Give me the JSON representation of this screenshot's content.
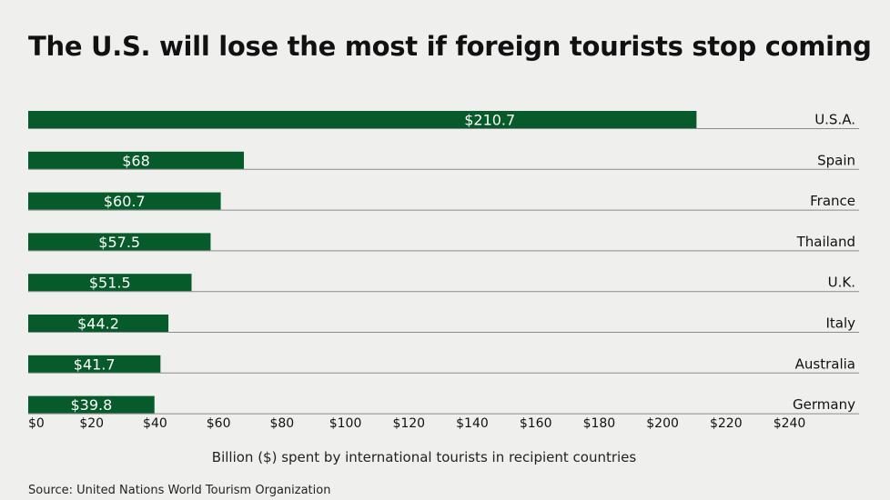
{
  "chart_data": {
    "type": "bar",
    "orientation": "horizontal",
    "title": "The U.S. will lose the most if foreign tourists stop coming",
    "xlabel": "Billion ($) spent by international tourists in recipient countries",
    "ylabel": "",
    "categories": [
      "U.S.A.",
      "Spain",
      "France",
      "Thailand",
      "U.K.",
      "Italy",
      "Australia",
      "Germany"
    ],
    "values": [
      210.7,
      68,
      60.7,
      57.5,
      51.5,
      44.2,
      41.7,
      39.8
    ],
    "data_labels": [
      "$210.7",
      "$68",
      "$60.7",
      "$57.5",
      "$51.5",
      "$44.2",
      "$41.7",
      "$39.8"
    ],
    "xlim": [
      0,
      240
    ],
    "xticks": [
      0,
      20,
      40,
      60,
      80,
      100,
      120,
      140,
      160,
      180,
      200,
      220,
      240
    ],
    "xtick_labels": [
      "$0",
      "$20",
      "$40",
      "$60",
      "$80",
      "$100",
      "$120",
      "$140",
      "$160",
      "$180",
      "$200",
      "$220",
      "$240"
    ],
    "grid": false,
    "legend": "none",
    "category_label_position": "right"
  },
  "source": "Source: United Nations World Tourism Organization",
  "colors": {
    "bar": "#075b2a",
    "rule": "#8a8a8a",
    "background": "#eff0ee"
  }
}
